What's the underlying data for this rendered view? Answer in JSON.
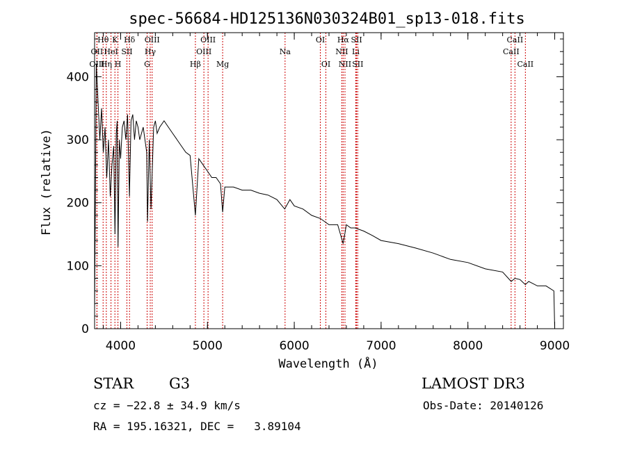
{
  "chart_data": {
    "type": "line",
    "title": "spec-56684-HD125136N030324B01_sp13-018.fits",
    "xlabel": "Wavelength (Å)",
    "ylabel": "Flux (relative)",
    "xlim": [
      3700,
      9100
    ],
    "ylim": [
      0,
      470
    ],
    "xticks": [
      4000,
      5000,
      6000,
      7000,
      8000,
      9000
    ],
    "yticks": [
      0,
      100,
      200,
      300,
      400
    ],
    "series": [
      {
        "name": "spectrum",
        "x": [
          3700,
          3720,
          3740,
          3760,
          3780,
          3800,
          3820,
          3840,
          3860,
          3880,
          3900,
          3920,
          3935,
          3950,
          3960,
          3970,
          3985,
          4000,
          4020,
          4040,
          4060,
          4080,
          4101,
          4120,
          4140,
          4160,
          4180,
          4200,
          4220,
          4240,
          4260,
          4280,
          4300,
          4310,
          4330,
          4350,
          4380,
          4400,
          4420,
          4450,
          4500,
          4550,
          4600,
          4650,
          4700,
          4750,
          4800,
          4861,
          4900,
          4950,
          5000,
          5050,
          5100,
          5150,
          5175,
          5200,
          5250,
          5300,
          5400,
          5500,
          5600,
          5700,
          5800,
          5890,
          5950,
          6000,
          6100,
          6200,
          6300,
          6400,
          6500,
          6563,
          6600,
          6650,
          6700,
          6800,
          6900,
          7000,
          7200,
          7400,
          7600,
          7800,
          8000,
          8200,
          8400,
          8498,
          8542,
          8600,
          8662,
          8700,
          8800,
          8900,
          8990,
          9000
        ],
        "y": [
          30,
          420,
          360,
          300,
          350,
          280,
          320,
          240,
          300,
          210,
          260,
          290,
          150,
          310,
          330,
          130,
          300,
          270,
          320,
          330,
          300,
          340,
          210,
          330,
          340,
          300,
          330,
          320,
          300,
          310,
          320,
          300,
          280,
          170,
          300,
          190,
          320,
          330,
          310,
          320,
          330,
          320,
          310,
          300,
          290,
          280,
          275,
          180,
          270,
          260,
          250,
          240,
          240,
          230,
          185,
          225,
          225,
          225,
          220,
          220,
          215,
          212,
          205,
          190,
          205,
          195,
          190,
          180,
          175,
          165,
          165,
          135,
          165,
          160,
          160,
          155,
          148,
          140,
          135,
          128,
          120,
          110,
          105,
          95,
          90,
          75,
          80,
          78,
          70,
          75,
          68,
          68,
          60,
          0
        ]
      }
    ],
    "lines": [
      {
        "label": "OII",
        "wl": 3727,
        "row": 2
      },
      {
        "label": "Hθ",
        "wl": 3798,
        "row": 1
      },
      {
        "label": "OIII",
        "wl": 3727,
        "row": 3
      },
      {
        "label": "K",
        "wl": 3934,
        "row": 1
      },
      {
        "label": "HeI",
        "wl": 3889,
        "row": 2
      },
      {
        "label": "Hη",
        "wl": 3835,
        "row": 3
      },
      {
        "label": "H",
        "wl": 3969,
        "row": 3
      },
      {
        "label": "SII",
        "wl": 4072,
        "row": 2
      },
      {
        "label": "Hδ",
        "wl": 4102,
        "row": 1
      },
      {
        "label": "OIII",
        "wl": 4363,
        "row": 1
      },
      {
        "label": "Hγ",
        "wl": 4341,
        "row": 2
      },
      {
        "label": "G",
        "wl": 4305,
        "row": 3
      },
      {
        "label": "Hβ",
        "wl": 4861,
        "row": 3
      },
      {
        "label": "OIII",
        "wl": 5007,
        "row": 1
      },
      {
        "label": "OIII",
        "wl": 4959,
        "row": 2
      },
      {
        "label": "Mg",
        "wl": 5175,
        "row": 3
      },
      {
        "label": "Na",
        "wl": 5894,
        "row": 2
      },
      {
        "label": "OI",
        "wl": 6300,
        "row": 1
      },
      {
        "label": "OI",
        "wl": 6364,
        "row": 3
      },
      {
        "label": "Hα",
        "wl": 6563,
        "row": 1
      },
      {
        "label": "NII",
        "wl": 6548,
        "row": 2
      },
      {
        "label": "NII",
        "wl": 6584,
        "row": 3
      },
      {
        "label": "SII",
        "wl": 6717,
        "row": 1
      },
      {
        "label": "Li",
        "wl": 6708,
        "row": 2
      },
      {
        "label": "SII",
        "wl": 6731,
        "row": 3
      },
      {
        "label": "CaII",
        "wl": 8542,
        "row": 1
      },
      {
        "label": "CaII",
        "wl": 8498,
        "row": 2
      },
      {
        "label": "CaII",
        "wl": 8662,
        "row": 3
      }
    ],
    "line_color": "#cc0000",
    "spectrum_color": "#000000"
  },
  "info": {
    "class": "STAR",
    "subclass": "G3",
    "survey": "LAMOST DR3",
    "cz": "cz = −22.8 ± 34.9 km/s",
    "obs_date": "Obs-Date: 20140126",
    "radec": "RA = 195.16321, DEC =   3.89104"
  }
}
